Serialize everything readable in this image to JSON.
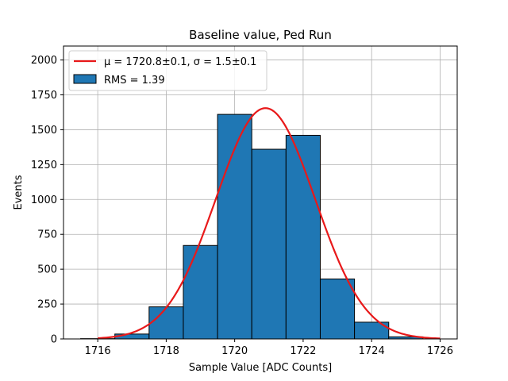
{
  "chart_data": {
    "type": "bar",
    "title": "Baseline value, Ped Run",
    "xlabel": "Sample Value [ADC Counts]",
    "ylabel": "Events",
    "xlim": [
      1715,
      1726.5
    ],
    "ylim": [
      0,
      2100
    ],
    "x_ticks": [
      1716,
      1718,
      1720,
      1722,
      1724,
      1726
    ],
    "y_ticks": [
      0,
      250,
      500,
      750,
      1000,
      1250,
      1500,
      1750,
      2000
    ],
    "grid": true,
    "legend_placement": "top-left",
    "histogram": {
      "name": "RMS = 1.39",
      "color": "#1f77b4",
      "bin_edges": [
        1715.5,
        1716.5,
        1717.5,
        1718.5,
        1719.5,
        1720.5,
        1721.5,
        1722.5,
        1723.5,
        1724.5,
        1725.5
      ],
      "counts": [
        2,
        35,
        230,
        670,
        1610,
        1360,
        1460,
        430,
        120,
        15
      ]
    },
    "fit": {
      "name": "μ = 1720.8±0.1, σ = 1.5±0.1",
      "color": "#e8191a",
      "type": "gaussian",
      "amplitude": 1655,
      "mean": 1720.9,
      "sigma": 1.45,
      "x_range": [
        1716,
        1726
      ]
    }
  }
}
